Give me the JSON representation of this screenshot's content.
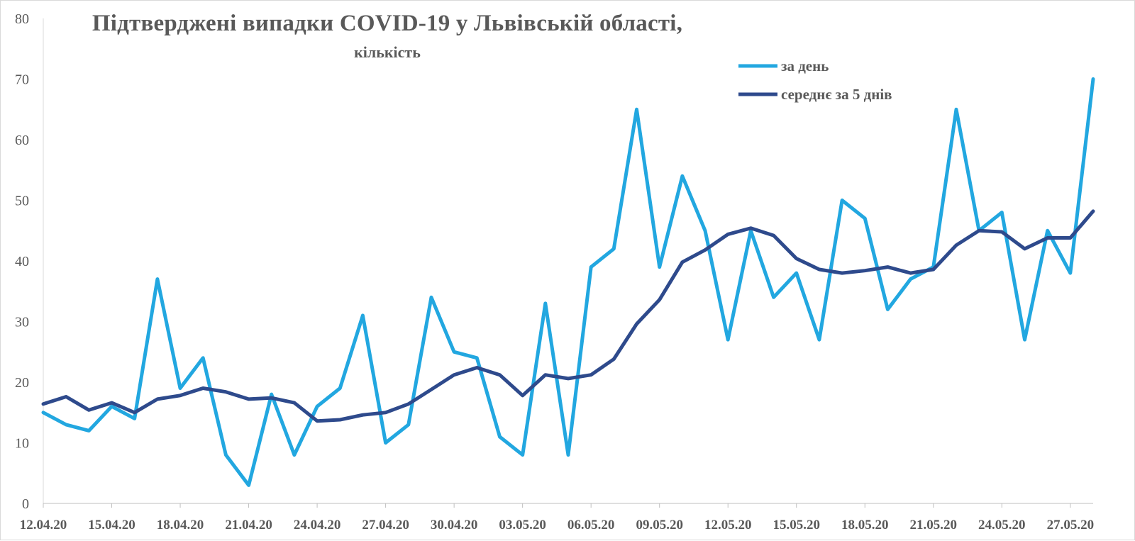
{
  "chart_data": {
    "type": "line",
    "title": "Підтверджені випадки COVID-19 у Львівській області,",
    "subtitle": "кількість",
    "ylim": [
      0,
      80
    ],
    "yticks": [
      0,
      10,
      20,
      30,
      40,
      50,
      60,
      70,
      80
    ],
    "grid": false,
    "legend_position": "top-right",
    "x": [
      "12.04.20",
      "13.04.20",
      "14.04.20",
      "15.04.20",
      "16.04.20",
      "17.04.20",
      "18.04.20",
      "19.04.20",
      "20.04.20",
      "21.04.20",
      "22.04.20",
      "23.04.20",
      "24.04.20",
      "25.04.20",
      "26.04.20",
      "27.04.20",
      "28.04.20",
      "29.04.20",
      "30.04.20",
      "01.05.20",
      "02.05.20",
      "03.05.20",
      "04.05.20",
      "05.05.20",
      "06.05.20",
      "07.05.20",
      "08.05.20",
      "09.05.20",
      "10.05.20",
      "11.05.20",
      "12.05.20",
      "13.05.20",
      "14.05.20",
      "15.05.20",
      "16.05.20",
      "17.05.20",
      "18.05.20",
      "19.05.20",
      "20.05.20",
      "21.05.20",
      "22.05.20",
      "23.05.20",
      "24.05.20",
      "25.05.20",
      "26.05.20",
      "27.05.20",
      "28.05.20"
    ],
    "xtick_labels": [
      "12.04.20",
      "15.04.20",
      "18.04.20",
      "21.04.20",
      "24.04.20",
      "27.04.20",
      "30.04.20",
      "03.05.20",
      "06.05.20",
      "09.05.20",
      "12.05.20",
      "15.05.20",
      "18.05.20",
      "21.05.20",
      "24.05.20",
      "27.05.20"
    ],
    "series": [
      {
        "name": "за день",
        "color": "#22a7e0",
        "values": [
          15,
          13,
          12,
          16,
          14,
          37,
          19,
          24,
          8,
          3,
          18,
          8,
          16,
          19,
          31,
          10,
          13,
          34,
          25,
          24,
          11,
          8,
          33,
          8,
          39,
          42,
          65,
          39,
          54,
          45,
          27,
          45,
          34,
          38,
          27,
          50,
          47,
          32,
          37,
          39,
          65,
          45,
          48,
          27,
          45,
          38,
          70
        ]
      },
      {
        "name": "середнє за 5 днів",
        "color": "#2e4a8c",
        "values": [
          16.4,
          17.6,
          15.4,
          16.6,
          15,
          17.2,
          17.8,
          19,
          18.4,
          17.2,
          17.4,
          16.6,
          13.6,
          13.8,
          14.6,
          15,
          16.4,
          18.8,
          21.2,
          22.4,
          21.2,
          17.8,
          21.2,
          20.6,
          21.2,
          23.8,
          29.6,
          33.6,
          39.8,
          41.8,
          44.4,
          45.4,
          44.2,
          40.4,
          38.6,
          38,
          38.4,
          39,
          38,
          38.6,
          42.6,
          45,
          44.8,
          42,
          43.8,
          43.8,
          48.2
        ]
      }
    ]
  }
}
